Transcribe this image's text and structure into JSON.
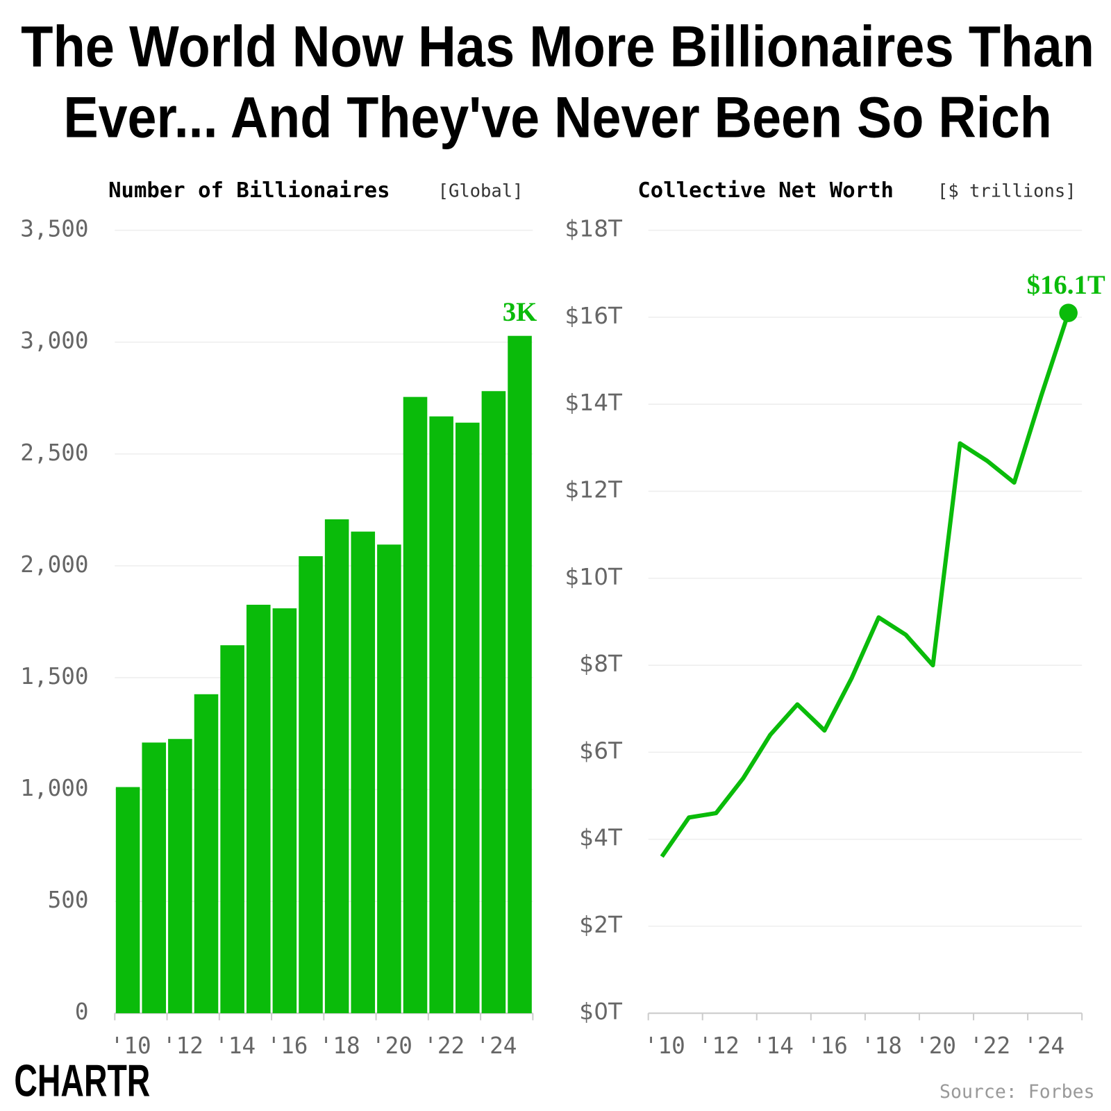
{
  "title": [
    "The World Now Has More Billionaires Than",
    "Ever... And They've Never Been So Rich"
  ],
  "source": "Source: Forbes",
  "logo": "CHARTR",
  "chart_data": [
    {
      "type": "bar",
      "title": "Number of Billionaires",
      "subtitle": "[Global]",
      "categories": [
        "'10",
        null,
        "'12",
        null,
        "'14",
        null,
        "'16",
        null,
        "'18",
        null,
        "'20",
        null,
        "'22",
        null,
        "'24",
        null
      ],
      "values": [
        1011,
        1210,
        1226,
        1426,
        1645,
        1826,
        1810,
        2043,
        2208,
        2153,
        2095,
        2755,
        2668,
        2640,
        2781,
        3028
      ],
      "value_labels": [
        null,
        null,
        null,
        null,
        null,
        null,
        null,
        null,
        null,
        null,
        null,
        null,
        null,
        null,
        null,
        "3K"
      ],
      "color": "#0abb0a",
      "ylim": [
        0,
        3500
      ],
      "yticks": [
        0,
        500,
        {
          "value": 1000,
          "label": "1,000"
        },
        {
          "value": 1500,
          "label": "1,500"
        },
        {
          "value": 2000,
          "label": "2,000"
        },
        {
          "value": 2500,
          "label": "2,500"
        },
        {
          "value": 3000,
          "label": "3,000"
        },
        {
          "value": 3500,
          "label": "3,500"
        }
      ],
      "grid": true
    },
    {
      "type": "line",
      "title": "Collective Net Worth",
      "subtitle": "[$ trillions]",
      "categories": [
        "'10",
        null,
        "'12",
        null,
        "'14",
        null,
        "'16",
        null,
        "'18",
        null,
        "'20",
        null,
        "'22",
        null,
        "'24",
        null
      ],
      "values": [
        3.6,
        4.5,
        4.6,
        5.4,
        6.4,
        7.1,
        6.5,
        7.7,
        9.1,
        8.7,
        8.0,
        13.1,
        12.7,
        12.2,
        14.2,
        16.1
      ],
      "value_labels": [
        null,
        null,
        null,
        null,
        null,
        null,
        null,
        null,
        null,
        null,
        null,
        null,
        null,
        null,
        null,
        "$16.1T"
      ],
      "color": "#0abb0a",
      "ylim": [
        0,
        18
      ],
      "yticks": [
        {
          "value": 0,
          "label": "$0T"
        },
        {
          "value": 2,
          "label": "$2T"
        },
        {
          "value": 4,
          "label": "$4T"
        },
        {
          "value": 6,
          "label": "$6T"
        },
        {
          "value": 8,
          "label": "$8T"
        },
        {
          "value": 10,
          "label": "$10T"
        },
        {
          "value": 12,
          "label": "$12T"
        },
        {
          "value": 14,
          "label": "$14T"
        },
        {
          "value": 16,
          "label": "$16T"
        },
        {
          "value": 18,
          "label": "$18T"
        }
      ],
      "grid": true
    }
  ]
}
